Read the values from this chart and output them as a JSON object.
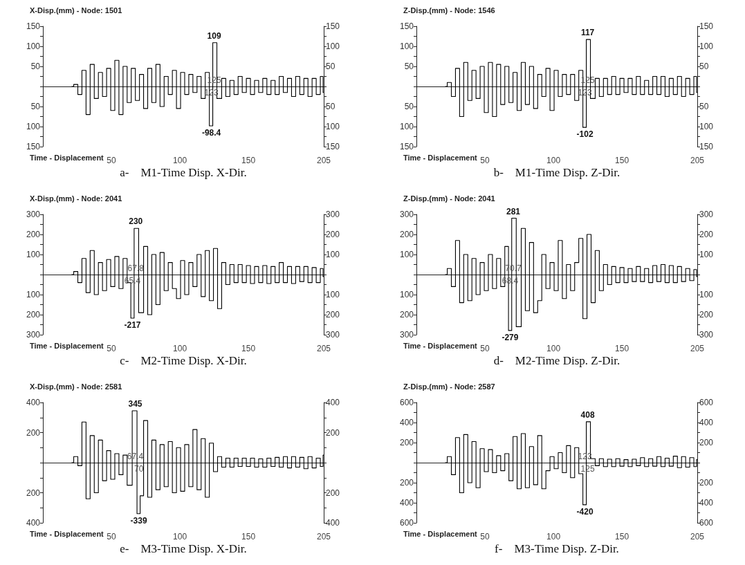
{
  "chart_data": [
    {
      "type": "step",
      "title": "X-Disp.(mm) - Node: 1501",
      "subtitle": "a-    M1-Time Disp. X-Dir.",
      "xlabel": "Time - Displacement",
      "x": [
        21,
        24,
        27,
        30,
        33,
        36,
        39,
        42,
        45,
        48,
        51,
        54,
        57,
        60,
        63,
        66,
        69,
        72,
        75,
        78,
        81,
        84,
        87,
        90,
        93,
        96,
        99,
        102,
        105,
        108,
        111,
        114,
        117,
        120,
        123,
        125,
        129,
        132,
        135,
        138,
        141,
        144,
        147,
        150,
        153,
        156,
        159,
        162,
        165,
        168,
        171,
        174,
        177,
        180,
        183,
        186,
        189,
        192,
        195,
        198,
        201,
        204,
        205
      ],
      "series": [
        {
          "color": "#000000",
          "values": [
            0,
            5,
            -20,
            40,
            -70,
            55,
            -30,
            35,
            -25,
            45,
            -60,
            65,
            -70,
            50,
            -40,
            45,
            -35,
            30,
            -55,
            45,
            -40,
            55,
            -50,
            25,
            -20,
            40,
            -55,
            35,
            -20,
            30,
            -15,
            25,
            -30,
            35,
            -98.4,
            109,
            -30,
            20,
            -25,
            15,
            -20,
            25,
            -15,
            20,
            -20,
            15,
            -15,
            20,
            -20,
            15,
            -20,
            25,
            -15,
            20,
            -25,
            25,
            -20,
            20,
            -25,
            20,
            -20,
            25,
            -15
          ]
        }
      ],
      "annotations": [
        {
          "text": "109",
          "x": 125,
          "y": 109
        },
        {
          "text": "125",
          "x": 125,
          "y": 0
        },
        {
          "text": "123",
          "x": 123,
          "y": 0
        },
        {
          "text": "-98.4",
          "x": 123,
          "y": -98.4
        }
      ],
      "xlim": [
        0,
        205
      ],
      "xticks": [
        50,
        100,
        150,
        205
      ],
      "ylim": [
        -150,
        150
      ],
      "yticks": [
        {
          "value": -150,
          "label": "150"
        },
        {
          "value": -125,
          "label": null
        },
        {
          "value": -100,
          "label": "100"
        },
        {
          "value": -75,
          "label": null
        },
        {
          "value": -50,
          "label": "50"
        },
        {
          "value": -25,
          "label": null
        },
        {
          "value": 0,
          "label": null
        },
        {
          "value": 25,
          "label": null
        },
        50,
        {
          "value": 75,
          "label": null
        },
        100,
        {
          "value": 125,
          "label": null
        },
        150
      ],
      "y2lim": [
        -150,
        150
      ],
      "y2ticks": [
        {
          "value": -150,
          "label": "150"
        },
        {
          "value": -125,
          "label": null
        },
        {
          "value": -100,
          "label": "100"
        },
        {
          "value": -75,
          "label": null
        },
        {
          "value": -50,
          "label": "50"
        },
        {
          "value": -25,
          "label": null
        },
        {
          "value": 0,
          "label": null
        },
        {
          "value": 25,
          "label": null
        },
        50,
        {
          "value": 75,
          "label": null
        },
        100,
        {
          "value": 125,
          "label": null
        },
        150
      ]
    },
    {
      "type": "step",
      "title": "Z-Disp.(mm) - Node: 1546",
      "subtitle": "b-    M1-Time Disp. Z-Dir.",
      "xlabel": "Time - Displacement",
      "x": [
        21,
        24,
        27,
        30,
        33,
        36,
        39,
        42,
        45,
        48,
        51,
        54,
        57,
        60,
        63,
        66,
        69,
        72,
        75,
        78,
        81,
        84,
        87,
        90,
        93,
        96,
        99,
        102,
        105,
        108,
        111,
        114,
        117,
        120,
        123,
        125,
        129,
        132,
        135,
        138,
        141,
        144,
        147,
        150,
        153,
        156,
        159,
        162,
        165,
        168,
        171,
        174,
        177,
        180,
        183,
        186,
        189,
        192,
        195,
        198,
        201,
        204,
        205
      ],
      "series": [
        {
          "color": "#000000",
          "values": [
            0,
            10,
            -25,
            45,
            -75,
            60,
            -35,
            40,
            -30,
            50,
            -65,
            60,
            -75,
            55,
            -45,
            50,
            -40,
            35,
            -60,
            60,
            -45,
            50,
            -55,
            30,
            -25,
            45,
            -60,
            40,
            -25,
            30,
            -20,
            30,
            -35,
            40,
            -102,
            117,
            -30,
            20,
            -25,
            20,
            -20,
            25,
            -20,
            20,
            -15,
            20,
            -20,
            25,
            -20,
            15,
            -20,
            25,
            -20,
            25,
            -25,
            20,
            -20,
            25,
            -25,
            20,
            -20,
            25,
            -15
          ]
        }
      ],
      "annotations": [
        {
          "text": "117",
          "x": 125,
          "y": 117
        },
        {
          "text": "125",
          "x": 125,
          "y": 0
        },
        {
          "text": "123",
          "x": 123,
          "y": 0
        },
        {
          "text": "-102",
          "x": 123,
          "y": -102
        }
      ],
      "xlim": [
        0,
        205
      ],
      "xticks": [
        50,
        100,
        150,
        205
      ],
      "ylim": [
        -150,
        150
      ],
      "yticks": [
        {
          "value": -150,
          "label": "150"
        },
        {
          "value": -125,
          "label": null
        },
        {
          "value": -100,
          "label": "100"
        },
        {
          "value": -75,
          "label": null
        },
        {
          "value": -50,
          "label": "50"
        },
        {
          "value": -25,
          "label": null
        },
        {
          "value": 0,
          "label": null
        },
        {
          "value": 25,
          "label": null
        },
        50,
        {
          "value": 75,
          "label": null
        },
        100,
        {
          "value": 125,
          "label": null
        },
        150
      ],
      "y2lim": [
        -150,
        150
      ],
      "y2ticks": [
        {
          "value": -150,
          "label": "150"
        },
        {
          "value": -125,
          "label": null
        },
        {
          "value": -100,
          "label": "100"
        },
        {
          "value": -75,
          "label": null
        },
        {
          "value": -50,
          "label": "50"
        },
        {
          "value": -25,
          "label": null
        },
        {
          "value": 0,
          "label": null
        },
        {
          "value": 25,
          "label": null
        },
        50,
        {
          "value": 75,
          "label": null
        },
        100,
        {
          "value": 125,
          "label": null
        },
        150
      ]
    },
    {
      "type": "step",
      "title": "X-Disp.(mm) - Node: 2041",
      "subtitle": "c-    M2-Time Disp. X-Dir.",
      "xlabel": "Time - Displacement",
      "x": [
        21,
        24,
        27,
        30,
        33,
        36,
        39,
        42,
        45,
        48,
        51,
        54,
        57,
        60,
        63,
        65.4,
        67.8,
        72,
        75,
        78,
        81,
        84,
        87,
        90,
        93,
        96,
        99,
        102,
        105,
        108,
        111,
        114,
        117,
        120,
        123,
        126,
        129,
        132,
        135,
        138,
        141,
        144,
        147,
        150,
        153,
        156,
        159,
        162,
        165,
        168,
        171,
        174,
        177,
        180,
        183,
        186,
        189,
        192,
        195,
        198,
        201,
        204,
        205
      ],
      "series": [
        {
          "color": "#000000",
          "values": [
            0,
            15,
            -40,
            80,
            -90,
            120,
            -100,
            60,
            -80,
            75,
            -60,
            90,
            -70,
            80,
            -40,
            -217,
            230,
            -190,
            140,
            -200,
            100,
            -150,
            110,
            -80,
            60,
            -70,
            -120,
            70,
            -100,
            60,
            -60,
            100,
            -110,
            120,
            -130,
            130,
            -170,
            60,
            -50,
            50,
            -40,
            50,
            -40,
            45,
            -45,
            40,
            -40,
            45,
            -45,
            40,
            -40,
            60,
            -40,
            40,
            -45,
            40,
            -35,
            40,
            -40,
            35,
            -40,
            30,
            -10
          ]
        }
      ],
      "annotations": [
        {
          "text": "230",
          "x": 67.8,
          "y": 230
        },
        {
          "text": "67.8",
          "x": 67.8,
          "y": 0
        },
        {
          "text": "65.4",
          "x": 65.4,
          "y": 0
        },
        {
          "text": "-217",
          "x": 65.4,
          "y": -217
        }
      ],
      "xlim": [
        0,
        205
      ],
      "xticks": [
        50,
        100,
        150,
        205
      ],
      "ylim": [
        -300,
        300
      ],
      "yticks": [
        {
          "value": -300,
          "label": "300"
        },
        {
          "value": -250,
          "label": null
        },
        {
          "value": -200,
          "label": "200"
        },
        {
          "value": -150,
          "label": null
        },
        {
          "value": -100,
          "label": "100"
        },
        {
          "value": -50,
          "label": null
        },
        {
          "value": 0,
          "label": null
        },
        {
          "value": 50,
          "label": null
        },
        100,
        {
          "value": 150,
          "label": null
        },
        200,
        {
          "value": 250,
          "label": null
        },
        300
      ],
      "y2lim": [
        -300,
        300
      ],
      "y2ticks": [
        {
          "value": -300,
          "label": "300"
        },
        {
          "value": -250,
          "label": null
        },
        {
          "value": -200,
          "label": "200"
        },
        {
          "value": -150,
          "label": null
        },
        {
          "value": -100,
          "label": "100"
        },
        {
          "value": -50,
          "label": null
        },
        {
          "value": 0,
          "label": null
        },
        {
          "value": 50,
          "label": null
        },
        100,
        {
          "value": 150,
          "label": null
        },
        200,
        {
          "value": 250,
          "label": null
        },
        300
      ]
    },
    {
      "type": "step",
      "title": "Z-Disp.(mm) - Node: 2041",
      "subtitle": "d-    M2-Time Disp. Z-Dir.",
      "xlabel": "Time - Displacement",
      "x": [
        21,
        24,
        27,
        30,
        33,
        36,
        39,
        42,
        45,
        48,
        51,
        54,
        57,
        60,
        63,
        66,
        68.4,
        70.7,
        75,
        78,
        81,
        84,
        87,
        90,
        93,
        96,
        99,
        102,
        105,
        108,
        111,
        114,
        117,
        120,
        123,
        126,
        129,
        132,
        135,
        138,
        141,
        144,
        147,
        150,
        153,
        156,
        159,
        162,
        165,
        168,
        171,
        174,
        177,
        180,
        183,
        186,
        189,
        192,
        195,
        198,
        201,
        204,
        205
      ],
      "series": [
        {
          "color": "#000000",
          "values": [
            0,
            30,
            -60,
            170,
            -140,
            100,
            -130,
            80,
            -100,
            60,
            -80,
            100,
            -70,
            80,
            -60,
            140,
            -279,
            281,
            -260,
            230,
            -180,
            160,
            -190,
            -130,
            100,
            -70,
            60,
            -80,
            170,
            -120,
            50,
            -80,
            60,
            180,
            -220,
            200,
            -140,
            120,
            -80,
            50,
            -50,
            40,
            -40,
            35,
            -40,
            30,
            -35,
            40,
            -35,
            30,
            -40,
            45,
            -35,
            50,
            -40,
            45,
            -40,
            40,
            -35,
            30,
            -30,
            25,
            -10
          ]
        }
      ],
      "annotations": [
        {
          "text": "281",
          "x": 70.7,
          "y": 281
        },
        {
          "text": "70.7",
          "x": 70.7,
          "y": 0
        },
        {
          "text": "68.4",
          "x": 68.4,
          "y": 0
        },
        {
          "text": "-279",
          "x": 68.4,
          "y": -279
        }
      ],
      "xlim": [
        0,
        205
      ],
      "xticks": [
        50,
        100,
        150,
        205
      ],
      "ylim": [
        -300,
        300
      ],
      "yticks": [
        {
          "value": -300,
          "label": "300"
        },
        {
          "value": -250,
          "label": null
        },
        {
          "value": -200,
          "label": "200"
        },
        {
          "value": -150,
          "label": null
        },
        {
          "value": -100,
          "label": "100"
        },
        {
          "value": -50,
          "label": null
        },
        {
          "value": 0,
          "label": null
        },
        {
          "value": 50,
          "label": null
        },
        100,
        {
          "value": 150,
          "label": null
        },
        200,
        {
          "value": 250,
          "label": null
        },
        300
      ],
      "y2lim": [
        -300,
        300
      ],
      "y2ticks": [
        {
          "value": -300,
          "label": "300"
        },
        {
          "value": -250,
          "label": null
        },
        {
          "value": -200,
          "label": "200"
        },
        {
          "value": -150,
          "label": null
        },
        {
          "value": -100,
          "label": "100"
        },
        {
          "value": -50,
          "label": null
        },
        {
          "value": 0,
          "label": null
        },
        {
          "value": 50,
          "label": null
        },
        100,
        {
          "value": 150,
          "label": null
        },
        200,
        {
          "value": 250,
          "label": null
        },
        300
      ]
    },
    {
      "type": "step",
      "title": "X-Disp.(mm) - Node: 2581",
      "subtitle": "e-    M3-Time Disp. X-Dir.",
      "xlabel": "Time - Displacement",
      "x": [
        21,
        24,
        27,
        30,
        33,
        36,
        39,
        42,
        45,
        48,
        51,
        54,
        57,
        60,
        63,
        67.4,
        70,
        72,
        75,
        78,
        81,
        84,
        87,
        90,
        93,
        96,
        99,
        102,
        105,
        108,
        111,
        114,
        117,
        120,
        123,
        126,
        129,
        132,
        135,
        138,
        141,
        144,
        147,
        150,
        153,
        156,
        159,
        162,
        165,
        168,
        171,
        174,
        177,
        180,
        183,
        186,
        189,
        192,
        195,
        198,
        201,
        204,
        205
      ],
      "series": [
        {
          "color": "#000000",
          "values": [
            0,
            40,
            -20,
            270,
            -240,
            180,
            -200,
            150,
            -120,
            80,
            -110,
            60,
            -80,
            50,
            -150,
            345,
            -339,
            -220,
            280,
            -230,
            150,
            -180,
            120,
            -160,
            140,
            -200,
            100,
            -190,
            120,
            -160,
            220,
            -180,
            160,
            -230,
            130,
            -60,
            40,
            -30,
            30,
            -30,
            30,
            -25,
            30,
            -25,
            30,
            -30,
            25,
            -30,
            30,
            -25,
            35,
            -30,
            40,
            -35,
            40,
            -30,
            35,
            -40,
            40,
            -35,
            30,
            -25,
            50
          ]
        }
      ],
      "annotations": [
        {
          "text": "345",
          "x": 67.4,
          "y": 345
        },
        {
          "text": "67.4",
          "x": 67.4,
          "y": 0
        },
        {
          "text": "70",
          "x": 70,
          "y": 0
        },
        {
          "text": "-339",
          "x": 70,
          "y": -339
        }
      ],
      "xlim": [
        0,
        205
      ],
      "xticks": [
        50,
        100,
        150,
        205
      ],
      "ylim": [
        -400,
        400
      ],
      "yticks": [
        {
          "value": -400,
          "label": "400"
        },
        {
          "value": -300,
          "label": null
        },
        {
          "value": -200,
          "label": "200"
        },
        {
          "value": -100,
          "label": null
        },
        {
          "value": 0,
          "label": null
        },
        {
          "value": 100,
          "label": null
        },
        200,
        {
          "value": 300,
          "label": null
        },
        400
      ],
      "y2lim": [
        -400,
        400
      ],
      "y2ticks": [
        {
          "value": -400,
          "label": "400"
        },
        {
          "value": -300,
          "label": null
        },
        {
          "value": -200,
          "label": "200"
        },
        {
          "value": -100,
          "label": null
        },
        {
          "value": 0,
          "label": null
        },
        {
          "value": 100,
          "label": null
        },
        200,
        {
          "value": 300,
          "label": null
        },
        400
      ]
    },
    {
      "type": "step",
      "title": "Z-Disp.(mm) - Node: 2587",
      "subtitle": "f-    M3-Time Disp. Z-Dir.",
      "xlabel": "Time - Displacement",
      "x": [
        21,
        24,
        27,
        30,
        33,
        36,
        39,
        42,
        45,
        48,
        51,
        54,
        57,
        60,
        63,
        66,
        69,
        72,
        75,
        78,
        81,
        84,
        87,
        90,
        93,
        96,
        99,
        102,
        105,
        108,
        111,
        114,
        117,
        120,
        123,
        125,
        129,
        132,
        135,
        138,
        141,
        144,
        147,
        150,
        153,
        156,
        159,
        162,
        165,
        168,
        171,
        174,
        177,
        180,
        183,
        186,
        189,
        192,
        195,
        198,
        201,
        204,
        205
      ],
      "series": [
        {
          "color": "#000000",
          "values": [
            0,
            60,
            -120,
            250,
            -300,
            280,
            -200,
            210,
            -250,
            140,
            -90,
            130,
            -100,
            70,
            -80,
            90,
            -180,
            260,
            -260,
            290,
            -250,
            160,
            -220,
            270,
            -260,
            -80,
            60,
            -60,
            100,
            -100,
            170,
            -150,
            150,
            -110,
            -420,
            408,
            40,
            -30,
            40,
            -40,
            35,
            -40,
            40,
            -35,
            30,
            -40,
            35,
            -30,
            50,
            -40,
            40,
            -35,
            60,
            -40,
            45,
            -35,
            65,
            -50,
            60,
            -45,
            50,
            -40,
            30
          ]
        }
      ],
      "annotations": [
        {
          "text": "408",
          "x": 125,
          "y": 408
        },
        {
          "text": "123",
          "x": 123,
          "y": 0
        },
        {
          "text": "125",
          "x": 125,
          "y": 0
        },
        {
          "text": "-420",
          "x": 123,
          "y": -420
        }
      ],
      "xlim": [
        0,
        205
      ],
      "xticks": [
        50,
        100,
        150,
        205
      ],
      "ylim": [
        -600,
        600
      ],
      "yticks": [
        {
          "value": -600,
          "label": "600"
        },
        {
          "value": -500,
          "label": null
        },
        {
          "value": -400,
          "label": "400"
        },
        {
          "value": -300,
          "label": null
        },
        {
          "value": -200,
          "label": "200"
        },
        {
          "value": -100,
          "label": null
        },
        {
          "value": 0,
          "label": null
        },
        {
          "value": 100,
          "label": null
        },
        200,
        {
          "value": 300,
          "label": null
        },
        400,
        {
          "value": 500,
          "label": null
        },
        600
      ],
      "y2lim": [
        -600,
        600
      ],
      "y2ticks": [
        {
          "value": -600,
          "label": "600"
        },
        {
          "value": -500,
          "label": null
        },
        {
          "value": -400,
          "label": "400"
        },
        {
          "value": -300,
          "label": null
        },
        {
          "value": -200,
          "label": "200"
        },
        {
          "value": -100,
          "label": null
        },
        {
          "value": 0,
          "label": null
        },
        {
          "value": 100,
          "label": null
        },
        200,
        {
          "value": 300,
          "label": null
        },
        400,
        {
          "value": 500,
          "label": null
        },
        600
      ]
    }
  ]
}
